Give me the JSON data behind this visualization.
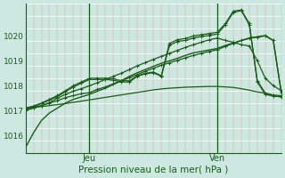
{
  "bg_color": "#cce8e0",
  "line_color": "#1a5c1a",
  "xlabel": "Pression niveau de la mer( hPa )",
  "ylabel_ticks": [
    1016,
    1017,
    1018,
    1019,
    1020
  ],
  "ylim": [
    1015.3,
    1021.3
  ],
  "xlim": [
    0,
    96
  ],
  "vline_jeu": 24,
  "vline_ven": 72,
  "series": [
    {
      "x": [
        0,
        3,
        6,
        9,
        12,
        15,
        18,
        21,
        24,
        27,
        30,
        33,
        36,
        39,
        42,
        45,
        48,
        51,
        54,
        57,
        60,
        63,
        66,
        69,
        72,
        75,
        78,
        81,
        84,
        87,
        90,
        93,
        96
      ],
      "y": [
        1015.5,
        1016.1,
        1016.6,
        1016.9,
        1017.1,
        1017.3,
        1017.45,
        1017.55,
        1017.65,
        1017.78,
        1017.9,
        1018.05,
        1018.2,
        1018.38,
        1018.52,
        1018.65,
        1018.78,
        1018.9,
        1019.0,
        1019.1,
        1019.22,
        1019.32,
        1019.38,
        1019.44,
        1019.5,
        1019.62,
        1019.72,
        1019.82,
        1019.92,
        1019.97,
        1020.02,
        1019.82,
        1017.72
      ],
      "has_markers": false,
      "lw": 1.0
    },
    {
      "x": [
        0,
        3,
        6,
        9,
        12,
        15,
        18,
        21,
        24,
        27,
        30,
        33,
        36,
        39,
        42,
        45,
        48,
        51,
        54,
        57,
        60,
        63,
        66,
        69,
        72,
        75,
        78,
        81,
        84,
        87,
        90,
        93,
        96
      ],
      "y": [
        1017.1,
        1017.13,
        1017.16,
        1017.2,
        1017.24,
        1017.28,
        1017.33,
        1017.38,
        1017.43,
        1017.48,
        1017.53,
        1017.58,
        1017.63,
        1017.68,
        1017.73,
        1017.78,
        1017.83,
        1017.87,
        1017.9,
        1017.92,
        1017.94,
        1017.95,
        1017.96,
        1017.97,
        1017.97,
        1017.95,
        1017.93,
        1017.88,
        1017.82,
        1017.75,
        1017.7,
        1017.62,
        1017.55
      ],
      "has_markers": false,
      "lw": 0.9
    },
    {
      "x": [
        0,
        3,
        6,
        9,
        12,
        15,
        18,
        21,
        24,
        27,
        30,
        33,
        36,
        39,
        42,
        45,
        48,
        51,
        54,
        57,
        60,
        63,
        66,
        69,
        72,
        75,
        78,
        81,
        84,
        87,
        90,
        93,
        96
      ],
      "y": [
        1017.0,
        1017.1,
        1017.2,
        1017.3,
        1017.4,
        1017.52,
        1017.6,
        1017.68,
        1017.72,
        1017.85,
        1017.95,
        1018.08,
        1018.2,
        1018.32,
        1018.45,
        1018.58,
        1018.7,
        1018.82,
        1018.92,
        1019.02,
        1019.12,
        1019.22,
        1019.3,
        1019.38,
        1019.45,
        1019.58,
        1019.7,
        1019.82,
        1019.9,
        1019.96,
        1020.0,
        1019.82,
        1017.72
      ],
      "has_markers": true,
      "marker": "+",
      "lw": 0.9
    },
    {
      "x": [
        0,
        3,
        6,
        9,
        12,
        15,
        18,
        21,
        24,
        27,
        30,
        33,
        36,
        39,
        42,
        45,
        48,
        51,
        54,
        57,
        60,
        63,
        66,
        69,
        72,
        75,
        78,
        81,
        84,
        87,
        90,
        93,
        96
      ],
      "y": [
        1017.05,
        1017.1,
        1017.2,
        1017.32,
        1017.5,
        1017.65,
        1017.78,
        1017.88,
        1018.0,
        1018.12,
        1018.25,
        1018.38,
        1018.5,
        1018.65,
        1018.8,
        1018.93,
        1019.06,
        1019.18,
        1019.3,
        1019.42,
        1019.54,
        1019.65,
        1019.75,
        1019.85,
        1019.92,
        1019.82,
        1019.75,
        1019.65,
        1019.6,
        1019.0,
        1018.3,
        1018.0,
        1017.8
      ],
      "has_markers": true,
      "marker": "+",
      "lw": 0.9
    },
    {
      "x": [
        0,
        3,
        6,
        9,
        12,
        15,
        18,
        21,
        24,
        27,
        30,
        33,
        36,
        39,
        42,
        45,
        48,
        51,
        54,
        57,
        60,
        63,
        66,
        69,
        72,
        75,
        78,
        81,
        84,
        87,
        90,
        93,
        96
      ],
      "y": [
        1017.1,
        1017.18,
        1017.3,
        1017.45,
        1017.6,
        1017.8,
        1018.0,
        1018.15,
        1018.3,
        1018.3,
        1018.3,
        1018.28,
        1018.2,
        1018.2,
        1018.4,
        1018.5,
        1018.55,
        1018.4,
        1019.7,
        1019.85,
        1019.9,
        1020.0,
        1020.05,
        1020.1,
        1020.15,
        1020.5,
        1021.0,
        1021.05,
        1020.5,
        1018.2,
        1017.7,
        1017.62,
        1017.6
      ],
      "has_markers": true,
      "marker": "+",
      "lw": 0.9
    },
    {
      "x": [
        0,
        3,
        6,
        9,
        12,
        15,
        18,
        21,
        24,
        27,
        30,
        33,
        36,
        39,
        42,
        45,
        48,
        51,
        54,
        57,
        60,
        63,
        66,
        69,
        72,
        75,
        78,
        81,
        84,
        87,
        90,
        93,
        96
      ],
      "y": [
        1017.08,
        1017.15,
        1017.28,
        1017.42,
        1017.56,
        1017.76,
        1017.95,
        1018.1,
        1018.25,
        1018.25,
        1018.25,
        1018.22,
        1018.15,
        1018.15,
        1018.38,
        1018.48,
        1018.52,
        1018.38,
        1019.62,
        1019.78,
        1019.82,
        1019.92,
        1019.98,
        1020.02,
        1020.08,
        1020.45,
        1020.95,
        1021.02,
        1020.45,
        1018.15,
        1017.65,
        1017.58,
        1017.55
      ],
      "has_markers": true,
      "marker": "+",
      "lw": 0.9
    }
  ]
}
